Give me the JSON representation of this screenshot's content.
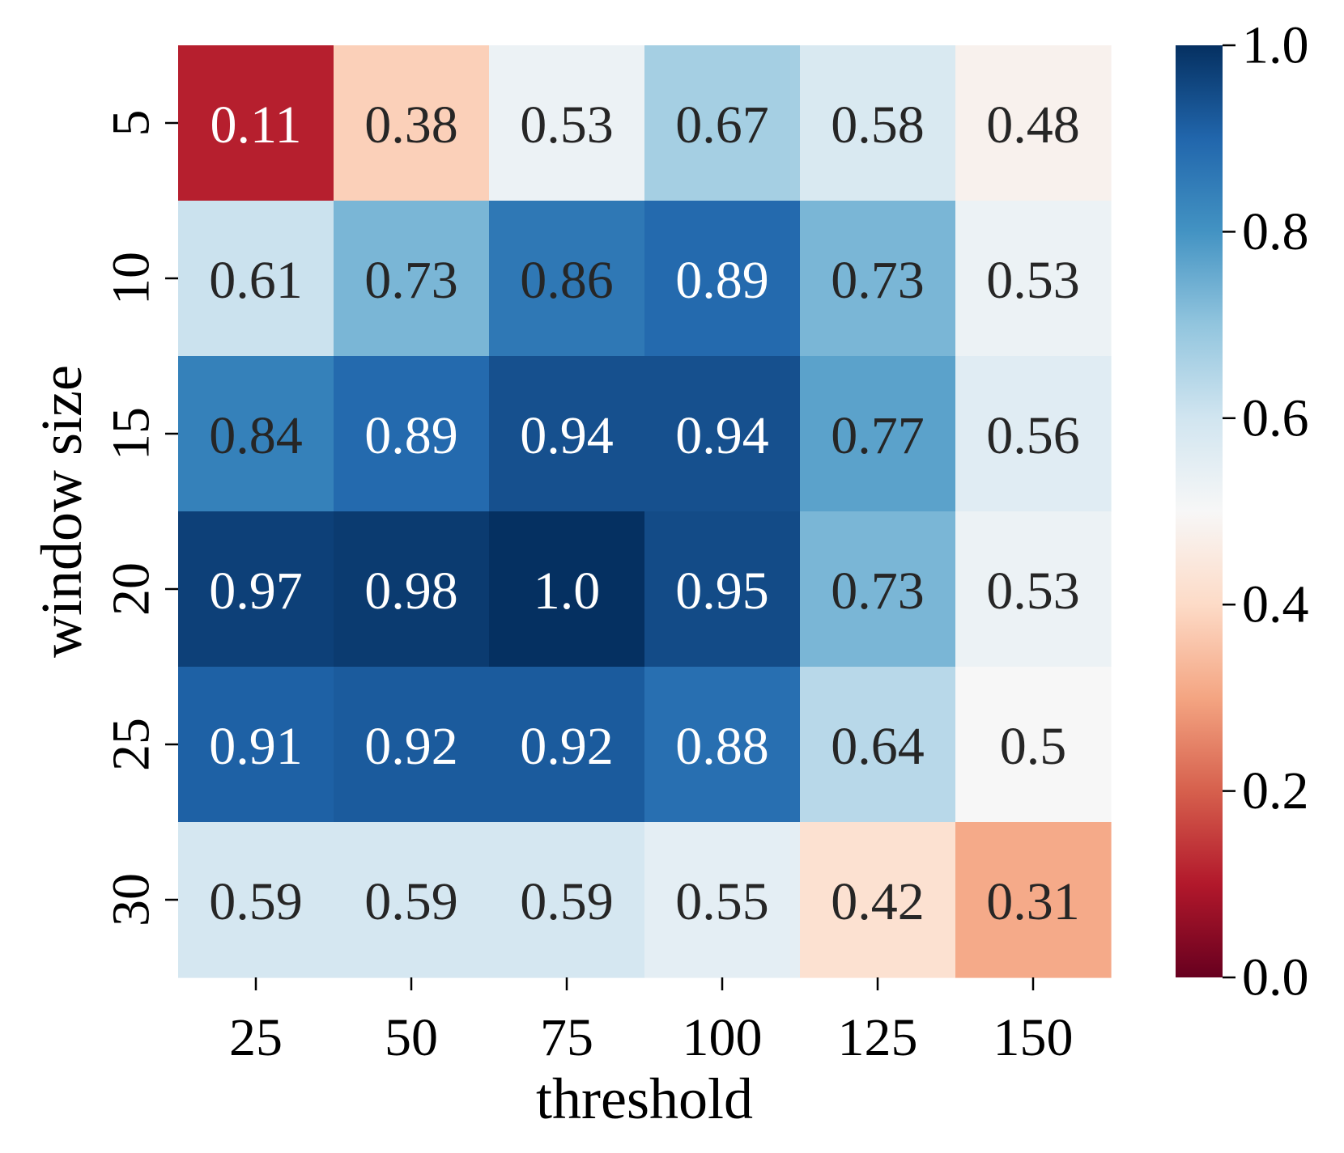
{
  "chart_data": {
    "type": "heatmap",
    "title": "",
    "xlabel": "threshold",
    "ylabel": "window size",
    "x_categories": [
      "25",
      "50",
      "75",
      "100",
      "125",
      "150"
    ],
    "y_categories": [
      "5",
      "10",
      "15",
      "20",
      "25",
      "30"
    ],
    "values": [
      [
        0.11,
        0.38,
        0.53,
        0.67,
        0.58,
        0.48
      ],
      [
        0.61,
        0.73,
        0.86,
        0.89,
        0.73,
        0.53
      ],
      [
        0.84,
        0.89,
        0.94,
        0.94,
        0.77,
        0.56
      ],
      [
        0.97,
        0.98,
        1.0,
        0.95,
        0.73,
        0.53
      ],
      [
        0.91,
        0.92,
        0.92,
        0.88,
        0.64,
        0.5
      ],
      [
        0.59,
        0.59,
        0.59,
        0.55,
        0.42,
        0.31
      ]
    ],
    "cell_labels": [
      [
        "0.11",
        "0.38",
        "0.53",
        "0.67",
        "0.58",
        "0.48"
      ],
      [
        "0.61",
        "0.73",
        "0.86",
        "0.89",
        "0.73",
        "0.53"
      ],
      [
        "0.84",
        "0.89",
        "0.94",
        "0.94",
        "0.77",
        "0.56"
      ],
      [
        "0.97",
        "0.98",
        "1.0",
        "0.95",
        "0.73",
        "0.53"
      ],
      [
        "0.91",
        "0.92",
        "0.92",
        "0.88",
        "0.64",
        "0.5"
      ],
      [
        "0.59",
        "0.59",
        "0.59",
        "0.55",
        "0.42",
        "0.31"
      ]
    ],
    "colormap": "RdBu",
    "colorbar": {
      "range": [
        0.0,
        1.0
      ],
      "tick_labels": [
        "0.0",
        "0.2",
        "0.4",
        "0.6",
        "0.8",
        "1.0"
      ],
      "placement": "right"
    },
    "grid": false,
    "text_colors": {
      "light": "#ffffff",
      "dark": "#262626"
    }
  }
}
